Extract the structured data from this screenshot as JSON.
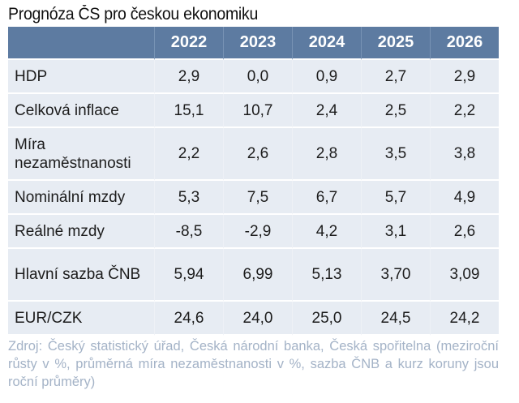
{
  "title": "Prognóza ČS pro českou ekonomiku",
  "table": {
    "header": [
      "",
      "2022",
      "2023",
      "2024",
      "2025",
      "2026"
    ],
    "rows": [
      {
        "label": "HDP",
        "values": [
          "2,9",
          "0,0",
          "0,9",
          "2,7",
          "2,9"
        ]
      },
      {
        "label": "Celková inflace",
        "values": [
          "15,1",
          "10,7",
          "2,4",
          "2,5",
          "2,2"
        ]
      },
      {
        "label": "Míra nezaměstnanosti",
        "values": [
          "2,2",
          "2,6",
          "2,8",
          "3,5",
          "3,8"
        ]
      },
      {
        "label": "Nominální mzdy",
        "values": [
          "5,3",
          "7,5",
          "6,7",
          "5,7",
          "4,9"
        ]
      },
      {
        "label": "Reálné mzdy",
        "values": [
          "-8,5",
          "-2,9",
          "4,2",
          "3,1",
          "2,6"
        ]
      },
      {
        "label": "Hlavní sazba ČNB",
        "values": [
          "5,94",
          "6,99",
          "5,13",
          "3,70",
          "3,09"
        ]
      },
      {
        "label": "EUR/CZK",
        "values": [
          "24,6",
          "24,0",
          "25,0",
          "24,5",
          "24,2"
        ]
      }
    ]
  },
  "note": "Zdroj: Český statistický úřad, Česká národní banka, Česká spořitelna (meziroční růsty v %, průměrná míra nezaměstnanosti v %, sazba ČNB a kurz koruny jsou roční průměry)",
  "colors": {
    "header_bg": "#5d7ba1",
    "header_text": "#ffffff",
    "row_bg": "#e7ecf3",
    "note_text": "#a4b3c7"
  },
  "chart_data": {
    "type": "table",
    "title": "Prognóza ČS pro českou ekonomiku",
    "columns": [
      "2022",
      "2023",
      "2024",
      "2025",
      "2026"
    ],
    "series": [
      {
        "name": "HDP",
        "values": [
          2.9,
          0.0,
          0.9,
          2.7,
          2.9
        ]
      },
      {
        "name": "Celková inflace",
        "values": [
          15.1,
          10.7,
          2.4,
          2.5,
          2.2
        ]
      },
      {
        "name": "Míra nezaměstnanosti",
        "values": [
          2.2,
          2.6,
          2.8,
          3.5,
          3.8
        ]
      },
      {
        "name": "Nominální mzdy",
        "values": [
          5.3,
          7.5,
          6.7,
          5.7,
          4.9
        ]
      },
      {
        "name": "Reálné mzdy",
        "values": [
          -8.5,
          -2.9,
          4.2,
          3.1,
          2.6
        ]
      },
      {
        "name": "Hlavní sazba ČNB",
        "values": [
          5.94,
          6.99,
          5.13,
          3.7,
          3.09
        ]
      },
      {
        "name": "EUR/CZK",
        "values": [
          24.6,
          24.0,
          25.0,
          24.5,
          24.2
        ]
      }
    ],
    "annotations": [
      "Zdroj: Český statistický úřad, Česká národní banka, Česká spořitelna (meziroční růsty v %, průměrná míra nezaměstnanosti v %, sazba ČNB a kurz koruny jsou roční průměry)"
    ]
  }
}
